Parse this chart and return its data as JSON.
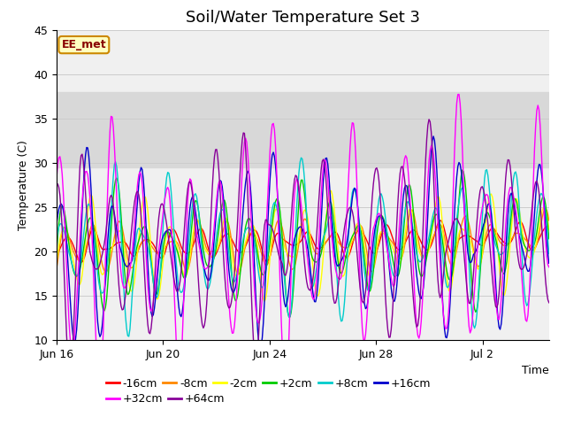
{
  "title": "Soil/Water Temperature Set 3",
  "xlabel": "Time",
  "ylabel": "Temperature (C)",
  "ylim": [
    10,
    45
  ],
  "yticks": [
    10,
    15,
    20,
    25,
    30,
    35,
    40,
    45
  ],
  "xtick_labels": [
    "Jun 16",
    "Jun 20",
    "Jun 24",
    "Jun 28",
    "Jul 2"
  ],
  "xtick_days": [
    0,
    4,
    8,
    12,
    16
  ],
  "xlim_days": [
    0,
    18.5
  ],
  "series_colors": {
    "-16cm": "#ff0000",
    "-8cm": "#ff8800",
    "-2cm": "#ffff00",
    "+2cm": "#00cc00",
    "+8cm": "#00cccc",
    "+16cm": "#0000cc",
    "+32cm": "#ff00ff",
    "+64cm": "#880099"
  },
  "shaded_band": [
    29.5,
    38.0
  ],
  "background_color": "#ffffff",
  "plot_bg_color": "#f0f0f0",
  "annotation_text": "EE_met",
  "annotation_bg": "#ffffc0",
  "annotation_border": "#cc8800",
  "annotation_text_color": "#880000",
  "title_fontsize": 13,
  "legend_fontsize": 9,
  "axis_fontsize": 9
}
